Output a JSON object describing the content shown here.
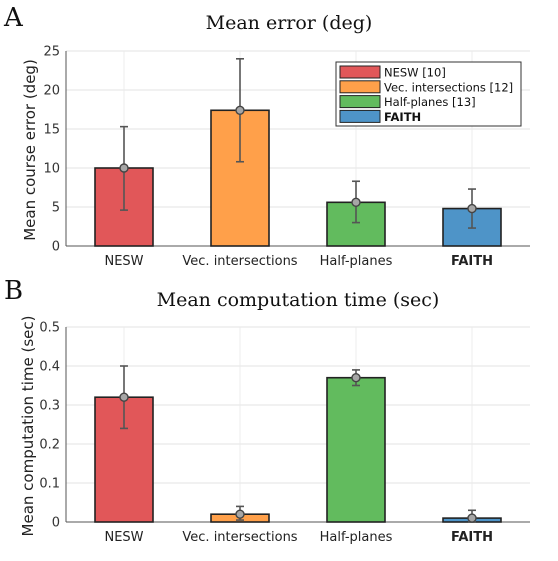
{
  "chart_data": [
    {
      "type": "bar",
      "panel_label": "A",
      "title": "Mean error (deg)",
      "ylabel": "Mean course error (deg)",
      "xlabel": "",
      "categories": [
        "NESW",
        "Vec. intersections",
        "Half-planes",
        "FAITH"
      ],
      "values": [
        10,
        17.4,
        5.6,
        4.8
      ],
      "error_low": [
        4.6,
        10.8,
        3.0,
        2.3
      ],
      "error_high": [
        15.3,
        24.0,
        8.3,
        7.3
      ],
      "ylim": [
        0,
        25
      ],
      "yticks": [
        "0",
        "5",
        "10",
        "15",
        "20",
        "25"
      ],
      "grid": true,
      "legend_position": "top-right",
      "legend": [
        "NESW [10]",
        "Vec. intersections [12]",
        "Half-planes [13]",
        "FAITH"
      ],
      "colors": [
        "#e15759",
        "#ffa04a",
        "#62bb5e",
        "#4e94c8"
      ]
    },
    {
      "type": "bar",
      "panel_label": "B",
      "title": "Mean computation time (sec)",
      "ylabel": "Mean computation time (sec)",
      "xlabel": "",
      "categories": [
        "NESW",
        "Vec. intersections",
        "Half-planes",
        "FAITH"
      ],
      "values": [
        0.32,
        0.02,
        0.37,
        0.01
      ],
      "error_low": [
        0.24,
        0.005,
        0.35,
        0.0
      ],
      "error_high": [
        0.4,
        0.04,
        0.39,
        0.03
      ],
      "ylim": [
        0,
        0.5
      ],
      "yticks": [
        "0",
        "0.1",
        "0.2",
        "0.3",
        "0.4",
        "0.5"
      ],
      "grid": true,
      "colors": [
        "#e15759",
        "#ffa04a",
        "#62bb5e",
        "#4e94c8"
      ]
    }
  ]
}
